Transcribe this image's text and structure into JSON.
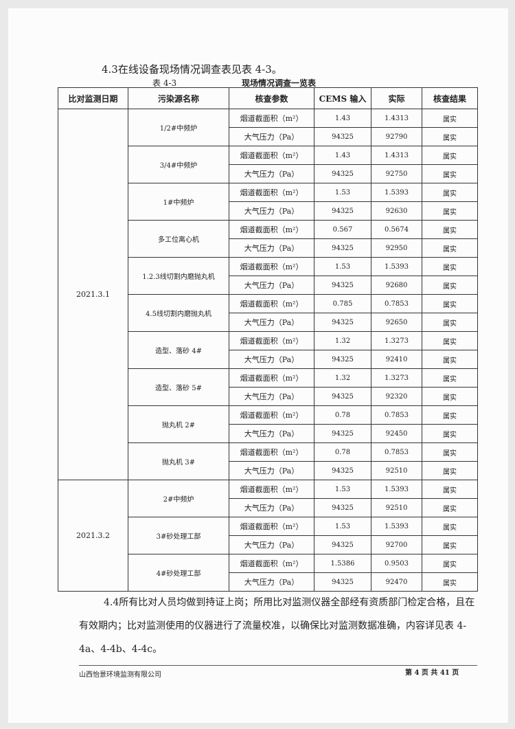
{
  "heading": "4.3在线设备现场情况调查表见表 4-3。",
  "table_label": "表 4-3",
  "table_title": "现场情况调查一览表",
  "headers": [
    "比对监测日期",
    "污染源名称",
    "核查参数",
    "CEMS 输入",
    "实际",
    "核查结果"
  ],
  "groups": [
    {
      "date": "2021.3.1",
      "sources": [
        {
          "name": "1/2#中频炉",
          "rows": [
            [
              "烟道截面积（m²）",
              "1.43",
              "1.4313",
              "属实"
            ],
            [
              "大气压力（Pa）",
              "94325",
              "92790",
              "属实"
            ]
          ]
        },
        {
          "name": "3/4#中频炉",
          "rows": [
            [
              "烟道截面积（m²）",
              "1.43",
              "1.4313",
              "属实"
            ],
            [
              "大气压力（Pa）",
              "94325",
              "92750",
              "属实"
            ]
          ]
        },
        {
          "name": "1#中频炉",
          "rows": [
            [
              "烟道截面积（m²）",
              "1.53",
              "1.5393",
              "属实"
            ],
            [
              "大气压力（Pa）",
              "94325",
              "92630",
              "属实"
            ]
          ]
        },
        {
          "name": "多工位离心机",
          "rows": [
            [
              "烟道截面积（m²）",
              "0.567",
              "0.5674",
              "属实"
            ],
            [
              "大气压力（Pa）",
              "94325",
              "92950",
              "属实"
            ]
          ]
        },
        {
          "name": "1.2.3线切割内磨抛丸机",
          "rows": [
            [
              "烟道截面积（m²）",
              "1.53",
              "1.5393",
              "属实"
            ],
            [
              "大气压力（Pa）",
              "94325",
              "92680",
              "属实"
            ]
          ]
        },
        {
          "name": "4.5线切割内磨抛丸机",
          "rows": [
            [
              "烟道截面积（m²）",
              "0.785",
              "0.7853",
              "属实"
            ],
            [
              "大气压力（Pa）",
              "94325",
              "92650",
              "属实"
            ]
          ]
        },
        {
          "name": "造型、落砂 4#",
          "rows": [
            [
              "烟道截面积（m²）",
              "1.32",
              "1.3273",
              "属实"
            ],
            [
              "大气压力（Pa）",
              "94325",
              "92410",
              "属实"
            ]
          ]
        },
        {
          "name": "造型、落砂 5#",
          "rows": [
            [
              "烟道截面积（m²）",
              "1.32",
              "1.3273",
              "属实"
            ],
            [
              "大气压力（Pa）",
              "94325",
              "92320",
              "属实"
            ]
          ]
        },
        {
          "name": "抛丸机 2#",
          "rows": [
            [
              "烟道截面积（m²）",
              "0.78",
              "0.7853",
              "属实"
            ],
            [
              "大气压力（Pa）",
              "94325",
              "92450",
              "属实"
            ]
          ]
        },
        {
          "name": "抛丸机 3#",
          "rows": [
            [
              "烟道截面积（m²）",
              "0.78",
              "0.7853",
              "属实"
            ],
            [
              "大气压力（Pa）",
              "94325",
              "92510",
              "属实"
            ]
          ]
        }
      ]
    },
    {
      "date": "2021.3.2",
      "sources": [
        {
          "name": "2#中频炉",
          "rows": [
            [
              "烟道截面积（m²）",
              "1.53",
              "1.5393",
              "属实"
            ],
            [
              "大气压力（Pa）",
              "94325",
              "92510",
              "属实"
            ]
          ]
        },
        {
          "name": "3#砂处理工部",
          "rows": [
            [
              "烟道截面积（m²）",
              "1.53",
              "1.5393",
              "属实"
            ],
            [
              "大气压力（Pa）",
              "94325",
              "92700",
              "属实"
            ]
          ]
        },
        {
          "name": "4#砂处理工部",
          "rows": [
            [
              "烟道截面积（m²）",
              "1.5386",
              "0.9503",
              "属实"
            ],
            [
              "大气压力（Pa）",
              "94325",
              "92470",
              "属实"
            ]
          ]
        }
      ]
    }
  ],
  "paragraph": "4.4所有比对人员均做到持证上岗；所用比对监测仪器全部经有资质部门检定合格，且在有效期内；比对监测使用的仪器进行了流量校准，以确保比对监测数据准确，内容详见表 4-4a、4-4b、4-4c。",
  "footer": {
    "company": "山西怡景环境监测有限公司",
    "page": "第 4 页 共 41 页"
  }
}
